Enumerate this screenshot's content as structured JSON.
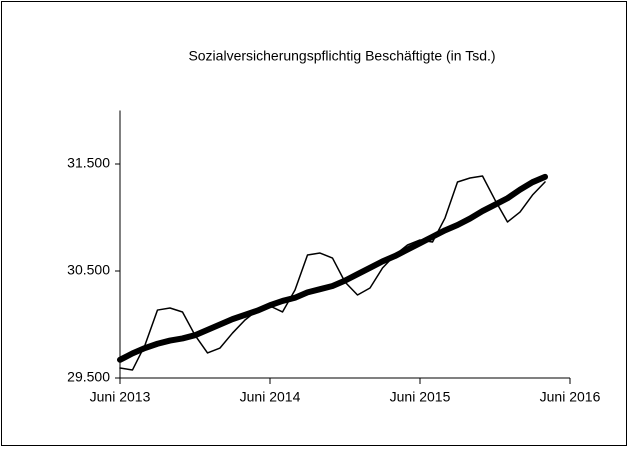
{
  "chart_data": {
    "type": "line",
    "title": "Sozialversicherungspflichtig Beschäftigte  (in Tsd.)",
    "x": [
      "2013-06",
      "2013-07",
      "2013-08",
      "2013-09",
      "2013-10",
      "2013-11",
      "2013-12",
      "2014-01",
      "2014-02",
      "2014-03",
      "2014-04",
      "2014-05",
      "2014-06",
      "2014-07",
      "2014-08",
      "2014-09",
      "2014-10",
      "2014-11",
      "2014-12",
      "2015-01",
      "2015-02",
      "2015-03",
      "2015-04",
      "2015-05",
      "2015-06",
      "2015-07",
      "2015-08",
      "2015-09",
      "2015-10",
      "2015-11",
      "2015-12",
      "2016-01",
      "2016-02",
      "2016-03",
      "2016-04"
    ],
    "series": [
      {
        "color": "#000000",
        "width": 1.5,
        "values": [
          29593,
          29575,
          29808,
          30135,
          30154,
          30117,
          29900,
          29734,
          29780,
          29920,
          30042,
          30135,
          30173,
          30117,
          30322,
          30650,
          30668,
          30621,
          30397,
          30276,
          30341,
          30528,
          30650,
          30743,
          30790,
          30771,
          30995,
          31332,
          31369,
          31388,
          31164,
          30958,
          31051,
          31210,
          31332
        ]
      },
      {
        "color": "#000000",
        "width": 6,
        "values": [
          29670,
          29730,
          29780,
          29820,
          29850,
          29870,
          29900,
          29950,
          30000,
          30050,
          30090,
          30130,
          30180,
          30220,
          30250,
          30300,
          30330,
          30360,
          30410,
          30470,
          30530,
          30590,
          30640,
          30700,
          30760,
          30820,
          30880,
          30930,
          30990,
          31060,
          31120,
          31180,
          31260,
          31330,
          31380
        ]
      }
    ],
    "xlim": [
      "2013-06",
      "2016-06"
    ],
    "xticks": [
      {
        "value": "2013-06",
        "label": "Juni 2013"
      },
      {
        "value": "2014-06",
        "label": "Juni 2014"
      },
      {
        "value": "2015-06",
        "label": "Juni 2015"
      },
      {
        "value": "2016-06",
        "label": "Juni 2016"
      }
    ],
    "ylim": [
      29500,
      32000
    ],
    "yticks": [
      {
        "value": 29500,
        "label": "29.500"
      },
      {
        "value": 30500,
        "label": "30.500"
      },
      {
        "value": 31500,
        "label": "31.500"
      }
    ],
    "grid": false
  }
}
